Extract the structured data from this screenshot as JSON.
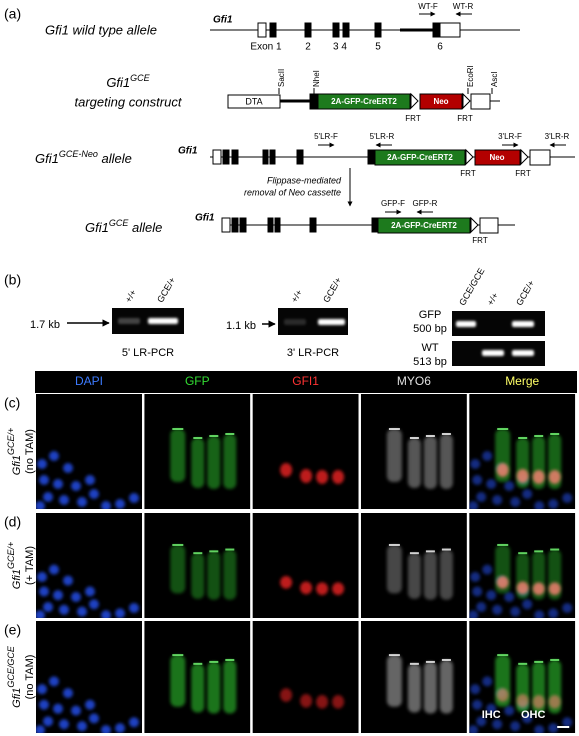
{
  "panel_a": {
    "label": "(a)",
    "wild_type": {
      "name": "Gfi1 wild type allele",
      "gene": "Gfi1",
      "exons": [
        "Exon 1",
        "2",
        "3 4",
        "5",
        "6"
      ],
      "primers": [
        "WT-F",
        "WT-R"
      ]
    },
    "targeting": {
      "name_base": "Gfi1",
      "name_sup": "GCE",
      "name_line2": "targeting construct",
      "sites": [
        "SacII",
        "NheI",
        "EcoRI",
        "AscI"
      ],
      "boxes": [
        "DTA",
        "2A-GFP-CreERT2",
        "Neo"
      ],
      "frt": [
        "FRT",
        "FRT"
      ]
    },
    "neo_allele": {
      "name_base": "Gfi1",
      "name_sup": "GCE-Neo",
      "name_tail": " allele",
      "gene": "Gfi1",
      "primers": [
        "5'LR-F",
        "5'LR-R",
        "3'LR-F",
        "3'LR-R"
      ],
      "boxes": [
        "2A-GFP-CreERT2",
        "Neo"
      ],
      "frt": [
        "FRT",
        "FRT"
      ]
    },
    "flippase": [
      "Flippase-mediated",
      "removal of Neo cassette"
    ],
    "gce_allele": {
      "name_base": "Gfi1",
      "name_sup": "GCE",
      "name_tail": " allele",
      "gene": "Gfi1",
      "primers": [
        "GFP-F",
        "GFP-R"
      ],
      "boxes": [
        "2A-GFP-CreERT2"
      ],
      "frt": [
        "FRT"
      ]
    }
  },
  "panel_b": {
    "label": "(b)",
    "gel_5lr": {
      "lanes": [
        "+/+",
        "GCE/+"
      ],
      "size": "1.7 kb",
      "caption": "5' LR-PCR"
    },
    "gel_3lr": {
      "lanes": [
        "+/+",
        "GCE/+"
      ],
      "size": "1.1 kb",
      "caption": "3' LR-PCR"
    },
    "gel_geno": {
      "lanes": [
        "GCE/GCE",
        "+/+",
        "GCE/+"
      ],
      "gfp": [
        "GFP",
        "500 bp"
      ],
      "wt": [
        "WT",
        "513 bp"
      ]
    }
  },
  "panel_cde": {
    "headers": [
      "DAPI",
      "GFP",
      "GFI1",
      "MYO6",
      "Merge"
    ],
    "rows": [
      {
        "label": "(c)",
        "genotype_base": "Gfi1",
        "genotype_sup": "GCE/+",
        "condition": "(no TAM)"
      },
      {
        "label": "(d)",
        "genotype_base": "Gfi1",
        "genotype_sup": "GCE/+",
        "condition": "(+ TAM)"
      },
      {
        "label": "(e)",
        "genotype_base": "Gfi1",
        "genotype_sup": "GCE/GCE",
        "condition": "(no TAM)"
      }
    ],
    "annotations": [
      "IHC",
      "OHC"
    ]
  }
}
